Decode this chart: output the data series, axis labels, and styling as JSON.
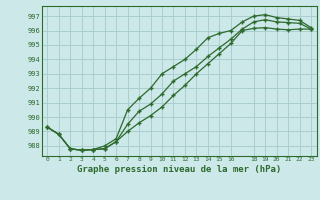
{
  "title": "Graphe pression niveau de la mer (hPa)",
  "bg_color": "#cce8e8",
  "grid_color": "#aacece",
  "line_color": "#2d6a2d",
  "xlim": [
    -0.5,
    23.5
  ],
  "ylim": [
    987.3,
    997.7
  ],
  "yticks": [
    988,
    989,
    990,
    991,
    992,
    993,
    994,
    995,
    996,
    997
  ],
  "xticks": [
    0,
    1,
    2,
    3,
    4,
    5,
    6,
    7,
    8,
    9,
    10,
    11,
    12,
    13,
    14,
    15,
    16,
    18,
    19,
    20,
    21,
    22,
    23
  ],
  "series1": [
    989.3,
    988.8,
    987.8,
    987.7,
    987.75,
    987.8,
    988.3,
    989.0,
    989.6,
    990.1,
    990.7,
    991.5,
    992.2,
    993.0,
    993.7,
    994.4,
    995.1,
    996.0,
    996.15,
    996.2,
    996.1,
    996.05,
    996.1,
    996.1
  ],
  "series2": [
    989.3,
    988.8,
    987.8,
    987.7,
    987.75,
    987.8,
    988.3,
    989.5,
    990.4,
    990.9,
    991.6,
    992.5,
    993.0,
    993.5,
    994.2,
    994.8,
    995.4,
    996.1,
    996.6,
    996.75,
    996.6,
    996.55,
    996.5,
    996.1
  ],
  "series3": [
    989.3,
    988.8,
    987.8,
    987.7,
    987.75,
    988.0,
    988.5,
    990.5,
    991.3,
    992.0,
    993.0,
    993.5,
    994.0,
    994.7,
    995.5,
    995.8,
    996.0,
    996.6,
    997.0,
    997.1,
    996.9,
    996.8,
    996.7,
    996.2
  ]
}
